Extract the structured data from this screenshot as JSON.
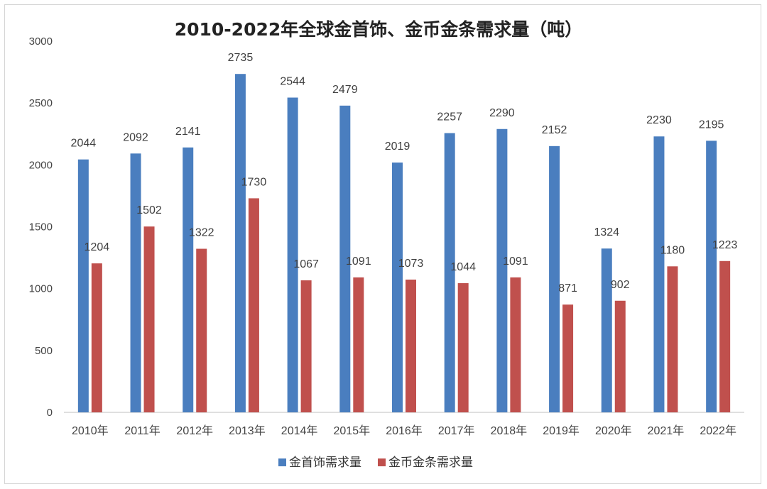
{
  "chart_data": {
    "type": "bar",
    "title": "2010-2022年全球金首饰、金币金条需求量（吨）",
    "categories": [
      "2010年",
      "2011年",
      "2012年",
      "2013年",
      "2014年",
      "2015年",
      "2016年",
      "2017年",
      "2018年",
      "2019年",
      "2020年",
      "2021年",
      "2022年"
    ],
    "series": [
      {
        "name": "金首饰需求量",
        "color": "#4a7ebf",
        "values": [
          2044,
          2092,
          2141,
          2735,
          2544,
          2479,
          2019,
          2257,
          2290,
          2152,
          1324,
          2230,
          2195
        ]
      },
      {
        "name": "金币金条需求量",
        "color": "#c0504d",
        "values": [
          1204,
          1502,
          1322,
          1730,
          1067,
          1091,
          1073,
          1044,
          1091,
          871,
          902,
          1180,
          1223
        ]
      }
    ],
    "ylim": [
      0,
      3000
    ],
    "yticks": [
      0,
      500,
      1000,
      1500,
      2000,
      2500,
      3000
    ],
    "xlabel": "",
    "ylabel": "",
    "legend": "bottom",
    "grid": false
  }
}
